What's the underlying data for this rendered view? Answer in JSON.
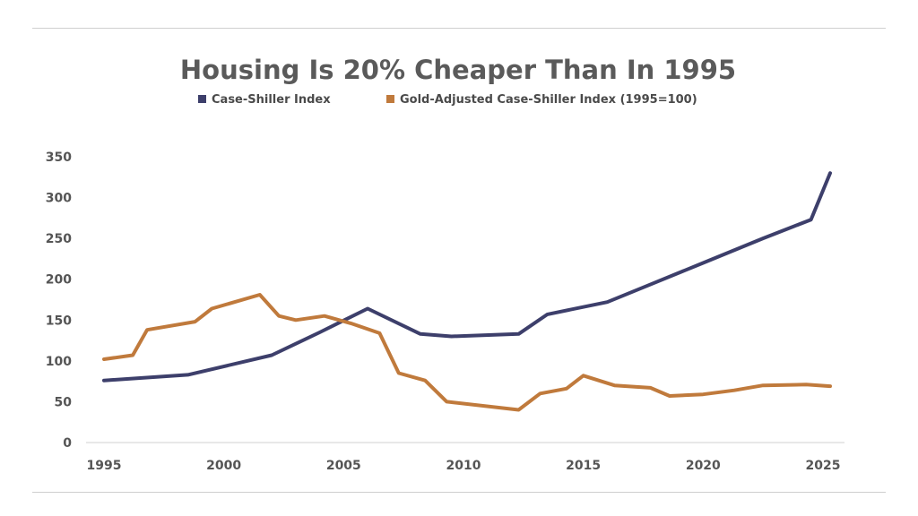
{
  "chart_data": {
    "type": "line",
    "title": "Housing Is 20% Cheaper Than In 1995",
    "xlabel": "",
    "ylabel": "",
    "xlim": [
      1995,
      2025.3
    ],
    "ylim": [
      0,
      350
    ],
    "x_ticks": [
      1995,
      2000,
      2005,
      2010,
      2015,
      2020,
      2025
    ],
    "y_ticks": [
      0,
      50,
      100,
      150,
      200,
      250,
      300,
      350
    ],
    "grid": false,
    "legend_position": "top-center",
    "series": [
      {
        "name": "Case-Shiller Index",
        "color": "#3d3f6b",
        "points": [
          [
            1995,
            76
          ],
          [
            1998.5,
            83
          ],
          [
            2002,
            107
          ],
          [
            2004,
            135
          ],
          [
            2006,
            164
          ],
          [
            2008.2,
            133
          ],
          [
            2009.5,
            130
          ],
          [
            2012.3,
            133
          ],
          [
            2013.5,
            157
          ],
          [
            2016,
            172
          ],
          [
            2017.5,
            190
          ],
          [
            2020,
            220
          ],
          [
            2022.5,
            250
          ],
          [
            2024.5,
            273
          ],
          [
            2025.3,
            330
          ]
        ]
      },
      {
        "name": "Gold-Adjusted Case-Shiller Index (1995=100)",
        "color": "#c07a3c",
        "points": [
          [
            1995,
            102
          ],
          [
            1996.2,
            107
          ],
          [
            1996.8,
            138
          ],
          [
            1998.8,
            148
          ],
          [
            1999.5,
            164
          ],
          [
            2001.5,
            181
          ],
          [
            2002.3,
            155
          ],
          [
            2003,
            150
          ],
          [
            2004.2,
            155
          ],
          [
            2005.3,
            146
          ],
          [
            2006.5,
            134
          ],
          [
            2007.3,
            85
          ],
          [
            2008.4,
            76
          ],
          [
            2009.3,
            50
          ],
          [
            2012.3,
            40
          ],
          [
            2013.2,
            60
          ],
          [
            2014.3,
            66
          ],
          [
            2015,
            82
          ],
          [
            2016.3,
            70
          ],
          [
            2017.8,
            67
          ],
          [
            2018.6,
            57
          ],
          [
            2020,
            59
          ],
          [
            2021.3,
            64
          ],
          [
            2022.5,
            70
          ],
          [
            2024.3,
            71
          ],
          [
            2025.3,
            69
          ]
        ]
      }
    ]
  }
}
